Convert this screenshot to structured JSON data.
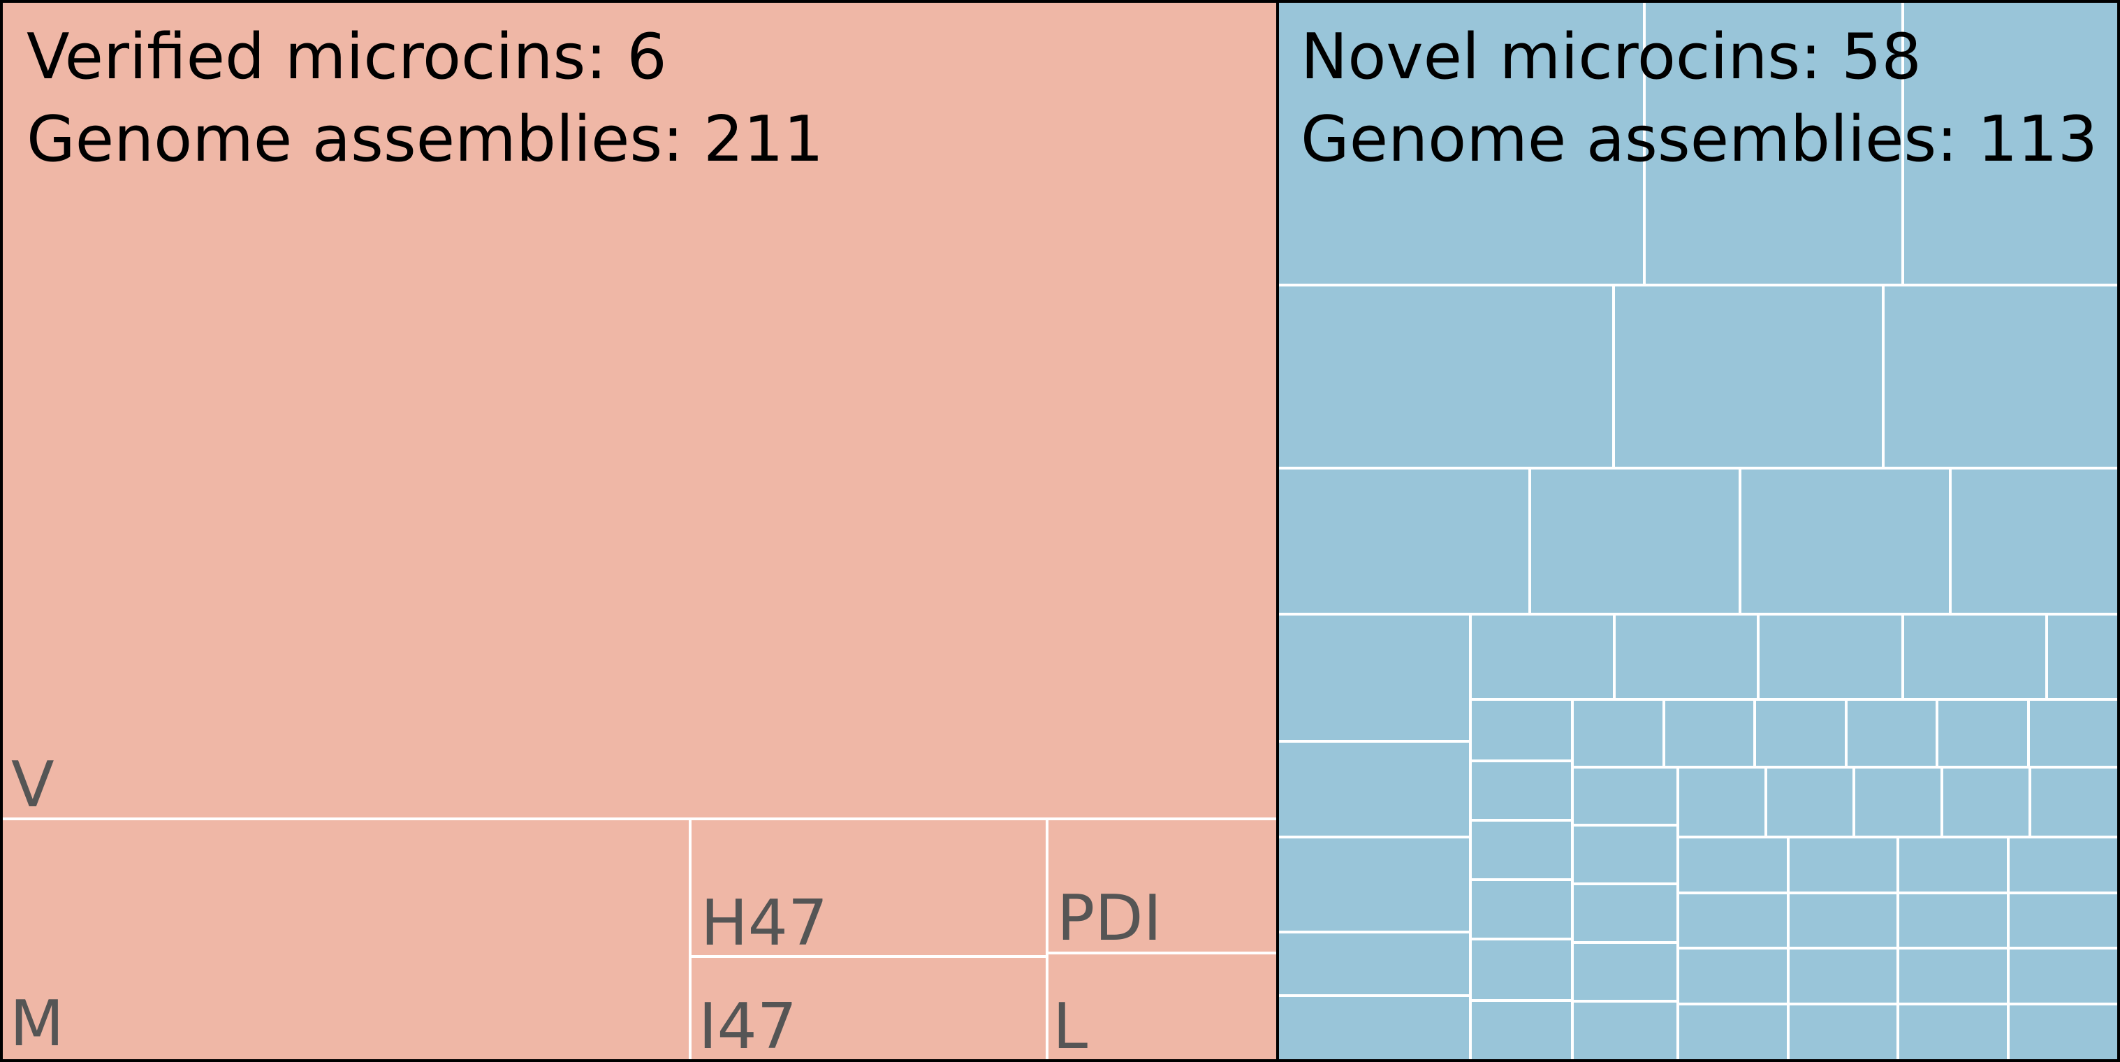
{
  "chart_data": {
    "type": "treemap",
    "panels": [
      {
        "id": "verified",
        "color": "#efb7a6",
        "line1": "Verified microcins: 6",
        "line2": "Genome assemblies: 211",
        "cells": [
          {
            "label": "V"
          },
          {
            "label": "M"
          },
          {
            "label": "H47"
          },
          {
            "label": "I47"
          },
          {
            "label": "PDI"
          },
          {
            "label": "L"
          }
        ]
      },
      {
        "id": "novel",
        "color": "#99c5d9",
        "line1": "Novel microcins: 58",
        "line2": "Genome assemblies: 113",
        "cell_count": 58
      }
    ],
    "border_color": "#000000",
    "divider_color": "#ffffff"
  }
}
